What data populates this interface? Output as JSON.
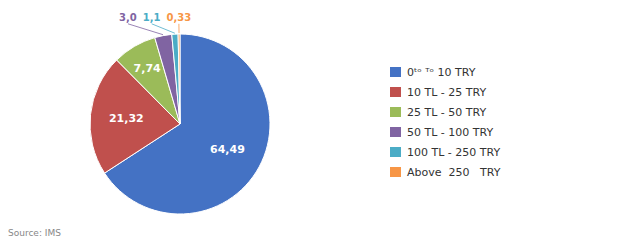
{
  "chart_data": {
    "type": "pie",
    "categories": [
      "0ᵗᵒ ᵀᵒ 10 TRY",
      "10 TL - 25 TRY",
      "25 TL - 50 TRY",
      "50 TL - 100 TRY",
      "100 TL - 250 TRY",
      "Above  250   TRY"
    ],
    "values": [
      64.49,
      21.32,
      7.74,
      3.0,
      1.1,
      0.33
    ],
    "value_labels": [
      "64,49",
      "21,32",
      "7,74",
      "3,0",
      "1,1",
      "0,33"
    ],
    "colors": [
      "#4472C4",
      "#C0504D",
      "#9BBB59",
      "#8064A2",
      "#4BACC6",
      "#F79646"
    ],
    "data_labels": true,
    "legend": "right",
    "annotations": [
      "Source: IMS"
    ]
  }
}
